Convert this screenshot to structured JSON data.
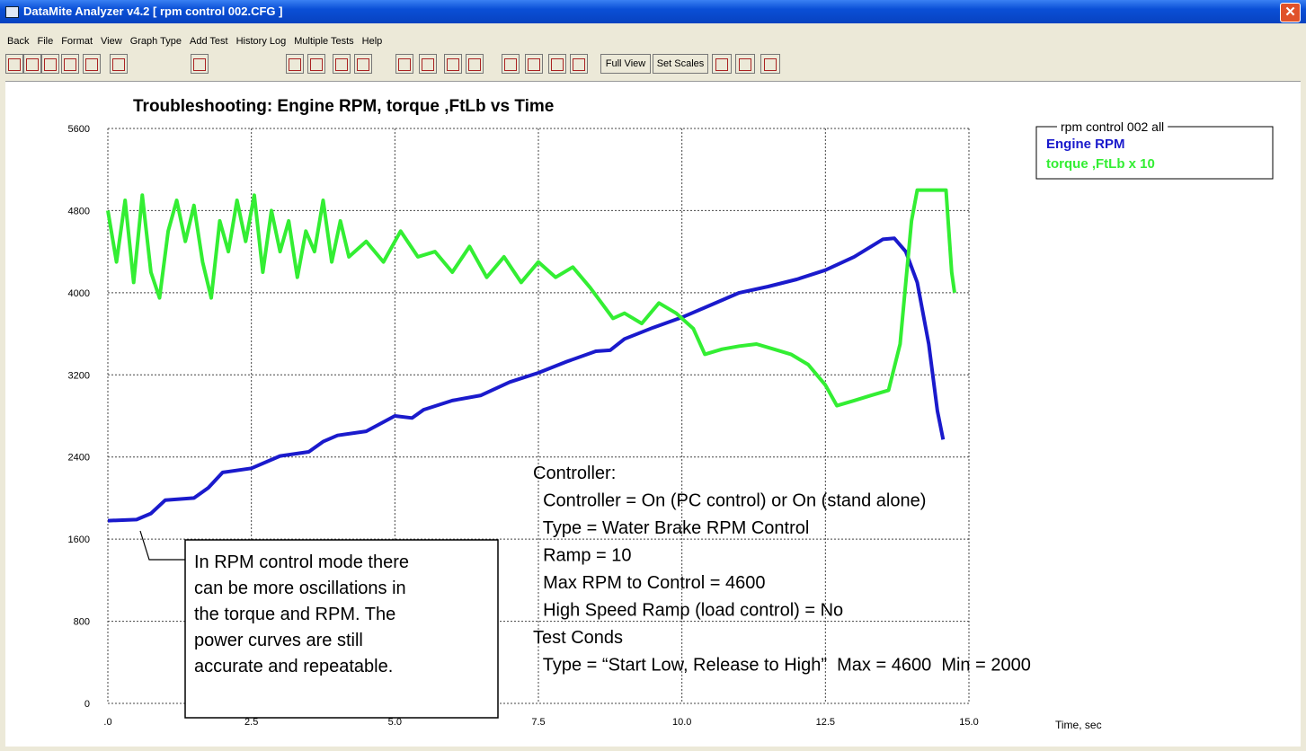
{
  "window": {
    "title": "DataMite Analyzer v4.2  [ rpm control 002.CFG ]",
    "menu": [
      "Back",
      "File",
      "Format",
      "View",
      "Graph Type",
      "Add Test",
      "History Log",
      "Multiple Tests",
      "Help"
    ],
    "toolbar": [
      "Full View",
      "Set Scales"
    ]
  },
  "chart_data": {
    "type": "line",
    "title": "Troubleshooting: Engine RPM, torque ,FtLb vs Time",
    "x_label": "Time, sec",
    "legend_title": "rpm control 002   all",
    "legend": "top-right",
    "grid": true,
    "xlim": [
      0,
      15
    ],
    "ylim": [
      0,
      5600
    ],
    "xticks": [
      {
        "value": 0,
        "label": ".0"
      },
      2.5,
      {
        "value": 5,
        "label": "5.0"
      },
      7.5,
      {
        "value": 10,
        "label": "10.0"
      },
      12.5,
      {
        "value": 15,
        "label": "15.0"
      }
    ],
    "yticks": [
      0,
      800,
      1600,
      2400,
      3200,
      4000,
      4800,
      5600
    ],
    "series": [
      {
        "name": "Engine RPM",
        "color": "#1a1acc",
        "x": [
          0,
          0.5,
          0.75,
          1.0,
          1.5,
          1.75,
          2.0,
          2.5,
          3.0,
          3.5,
          3.75,
          4.0,
          4.5,
          5.0,
          5.3,
          5.5,
          6.0,
          6.5,
          7.0,
          7.5,
          8.0,
          8.5,
          8.75,
          9.0,
          9.5,
          10.0,
          10.5,
          11.0,
          11.5,
          12.0,
          12.5,
          13.0,
          13.5,
          13.7,
          13.9,
          14.1,
          14.3,
          14.45,
          14.55
        ],
        "values": [
          1780,
          1790,
          1850,
          1980,
          2000,
          2100,
          2250,
          2290,
          2410,
          2450,
          2550,
          2610,
          2650,
          2800,
          2780,
          2860,
          2950,
          3000,
          3130,
          3220,
          3330,
          3430,
          3440,
          3550,
          3660,
          3760,
          3880,
          4000,
          4060,
          4130,
          4220,
          4350,
          4520,
          4530,
          4400,
          4100,
          3500,
          2850,
          2570
        ]
      },
      {
        "name": "torque ,FtLb x 10",
        "color": "#33ee33",
        "x": [
          0,
          0.15,
          0.3,
          0.45,
          0.6,
          0.75,
          0.9,
          1.05,
          1.2,
          1.35,
          1.5,
          1.65,
          1.8,
          1.95,
          2.1,
          2.25,
          2.4,
          2.55,
          2.7,
          2.85,
          3.0,
          3.15,
          3.3,
          3.45,
          3.6,
          3.75,
          3.9,
          4.05,
          4.2,
          4.5,
          4.8,
          5.1,
          5.4,
          5.7,
          6.0,
          6.3,
          6.6,
          6.9,
          7.2,
          7.5,
          7.8,
          8.1,
          8.4,
          8.6,
          8.8,
          9.0,
          9.3,
          9.6,
          9.9,
          10.2,
          10.4,
          10.7,
          11.0,
          11.3,
          11.6,
          11.9,
          12.2,
          12.5,
          12.7,
          13.0,
          13.3,
          13.6,
          13.8,
          14.0,
          14.1,
          14.4,
          14.6,
          14.7,
          14.75
        ],
        "values": [
          4800,
          4300,
          4900,
          4100,
          4950,
          4200,
          3950,
          4600,
          4900,
          4500,
          4850,
          4300,
          3950,
          4700,
          4400,
          4900,
          4500,
          4950,
          4200,
          4800,
          4400,
          4700,
          4150,
          4600,
          4400,
          4900,
          4300,
          4700,
          4350,
          4500,
          4300,
          4600,
          4350,
          4400,
          4200,
          4450,
          4150,
          4350,
          4100,
          4300,
          4150,
          4250,
          4050,
          3900,
          3750,
          3800,
          3700,
          3900,
          3800,
          3650,
          3400,
          3450,
          3480,
          3500,
          3450,
          3400,
          3300,
          3100,
          2900,
          2950,
          3000,
          3050,
          3500,
          4700,
          5000,
          5000,
          5000,
          4200,
          4000
        ]
      }
    ],
    "annotations": {
      "callout": [
        "In RPM control mode there",
        "can be more oscillations in",
        "the torque and RPM.  The",
        "power curves are still",
        "accurate and repeatable."
      ],
      "settings": [
        "Controller:",
        "  Controller = On (PC control) or On (stand alone)",
        "  Type = Water Brake RPM Control",
        "  Ramp = 10",
        "  Max RPM to Control = 4600",
        "  High Speed Ramp (load control) = No",
        "Test Conds",
        "  Type = “Start Low, Release to High”  Max = 4600  Min = 2000"
      ]
    }
  }
}
